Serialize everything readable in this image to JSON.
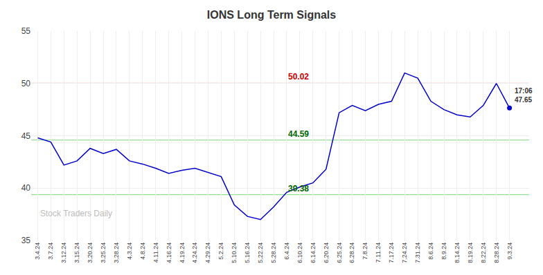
{
  "chart_data": {
    "type": "line",
    "title": "IONS Long Term Signals",
    "categories": [
      "3.4.24",
      "3.7.24",
      "3.12.24",
      "3.15.24",
      "3.20.24",
      "3.25.24",
      "3.28.24",
      "4.3.24",
      "4.8.24",
      "4.11.24",
      "4.16.24",
      "4.19.24",
      "4.24.24",
      "4.29.24",
      "5.2.24",
      "5.10.24",
      "5.16.24",
      "5.22.24",
      "5.28.24",
      "6.4.24",
      "6.10.24",
      "6.14.24",
      "6.20.24",
      "6.25.24",
      "6.28.24",
      "7.8.24",
      "7.11.24",
      "7.17.24",
      "7.24.24",
      "7.31.24",
      "8.6.24",
      "8.9.24",
      "8.14.24",
      "8.19.24",
      "8.22.24",
      "8.28.24",
      "9.3.24"
    ],
    "values": [
      44.8,
      44.4,
      42.2,
      42.6,
      43.8,
      43.3,
      43.7,
      42.6,
      42.3,
      41.9,
      41.4,
      41.7,
      41.9,
      41.5,
      41.1,
      38.4,
      37.3,
      37.0,
      38.2,
      39.6,
      40.1,
      40.5,
      41.8,
      47.2,
      47.9,
      47.4,
      48.0,
      48.3,
      51.0,
      50.5,
      48.3,
      47.5,
      47.0,
      46.8,
      47.9,
      50.0,
      47.65
    ],
    "color": "#0000cc",
    "ylim": [
      35,
      55
    ],
    "yticks": [
      35,
      40,
      45,
      50,
      55
    ],
    "grid": true,
    "reference_lines": [
      {
        "value": 50.02,
        "color": "#ffaaaa",
        "label_color": "#cc0000",
        "label_at": "6.4.24"
      },
      {
        "value": 44.59,
        "color": "#99dd99",
        "label_color": "#006600",
        "label_at": "6.4.24"
      },
      {
        "value": 39.38,
        "color": "#99dd99",
        "label_color": "#006600",
        "label_at": "6.4.24"
      }
    ],
    "last_label": "17:06",
    "watermark": "Stock Traders Daily"
  }
}
